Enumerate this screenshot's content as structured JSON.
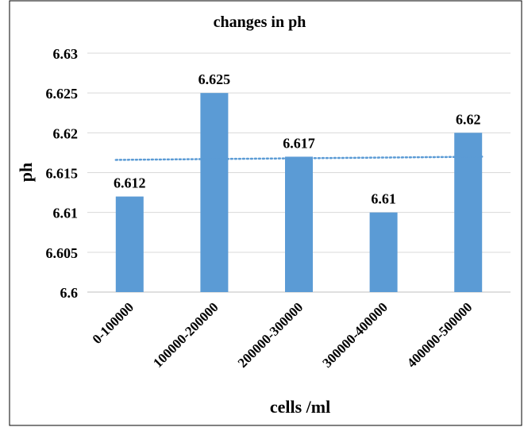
{
  "chart_data": {
    "type": "bar",
    "title": "changes in ph",
    "xlabel": "cells /ml",
    "ylabel": "ph",
    "categories": [
      "0-100000",
      "100000-200000",
      "200000-300000",
      "300000-400000",
      "400000-500000"
    ],
    "values": [
      6.612,
      6.625,
      6.617,
      6.61,
      6.62
    ],
    "value_labels": [
      "6.612",
      "6.625",
      "6.617",
      "6.61",
      "6.62"
    ],
    "ylim": [
      6.6,
      6.63
    ],
    "yticks": [
      6.6,
      6.605,
      6.61,
      6.615,
      6.62,
      6.625,
      6.63
    ],
    "ytick_labels": [
      "6.6",
      "6.605",
      "6.61",
      "6.615",
      "6.62",
      "6.625",
      "6.63"
    ],
    "grid": true,
    "trendline": {
      "type": "linear",
      "style": "dotted"
    },
    "legend": "none",
    "colors": {
      "bar": "#5b9bd5",
      "trendline": "#5b9bd5",
      "grid": "#d9d9d9",
      "border": "#000000"
    }
  }
}
